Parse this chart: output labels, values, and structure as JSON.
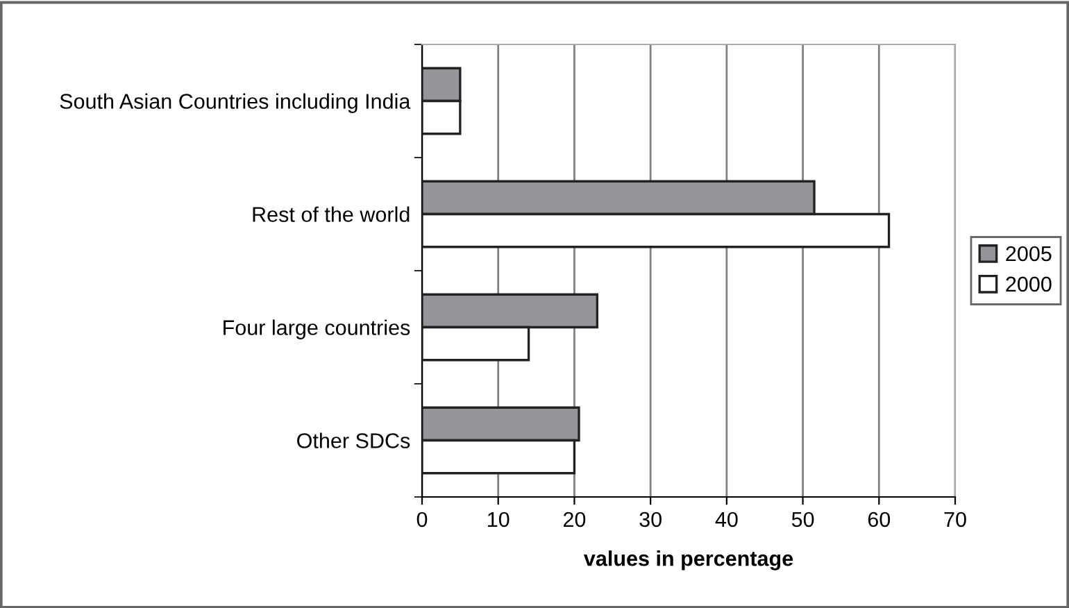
{
  "chart_data": {
    "type": "bar",
    "orientation": "horizontal",
    "xlabel": "values in percentage",
    "categories": [
      "South Asian Countries including India",
      "Rest of the world",
      "Four large countries",
      "Other SDCs"
    ],
    "series": [
      {
        "name": "2005",
        "color": "#939598",
        "values": [
          5,
          51.5,
          23,
          20.6
        ]
      },
      {
        "name": "2000",
        "color": "#ffffff",
        "values": [
          5,
          61.3,
          14,
          20
        ]
      }
    ],
    "xlim": [
      0,
      70
    ],
    "xticks": [
      0,
      10,
      20,
      30,
      40,
      50,
      60,
      70
    ],
    "grid": "x",
    "legend": "right"
  }
}
